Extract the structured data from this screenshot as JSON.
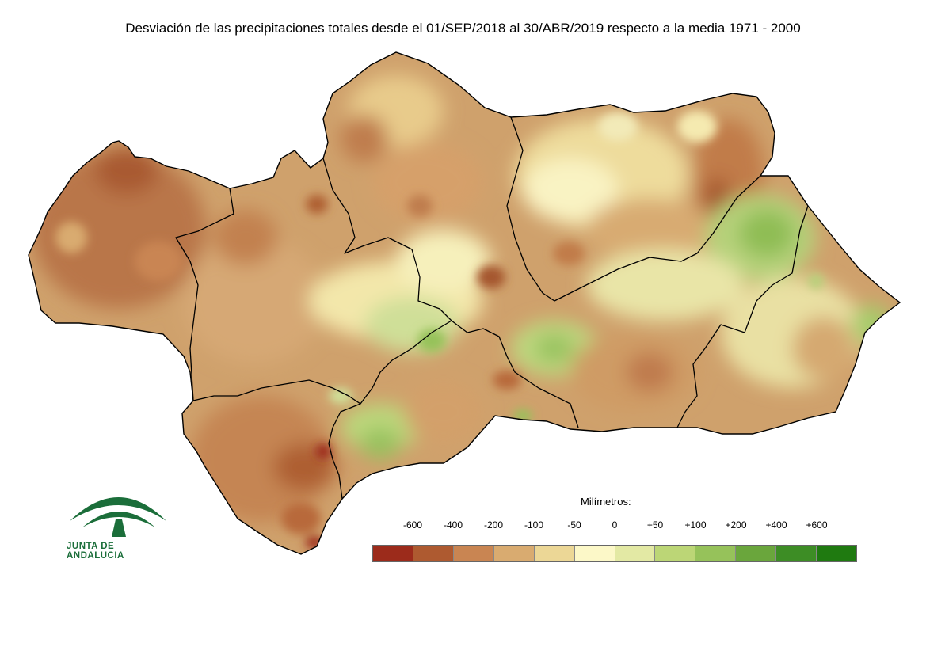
{
  "title": "Desviación de las precipitaciones totales desde el 01/SEP/2018 al 30/ABR/2019 respecto a la media 1971 - 2000",
  "legend": {
    "unit_label": "Milímetros:",
    "labels": [
      "-600",
      "-400",
      "-200",
      "-100",
      "-50",
      "0",
      "+50",
      "+100",
      "+200",
      "+400",
      "+600"
    ],
    "colors": [
      "#9c2b1b",
      "#ae5a30",
      "#c98552",
      "#d9ab70",
      "#ecd796",
      "#fcf8c8",
      "#e3e9a4",
      "#bcd676",
      "#96c25a",
      "#6aa63c",
      "#3d8d25",
      "#1f7a10"
    ]
  },
  "logo": {
    "text": "JUNTA DE ANDALUCIA",
    "icon": "junta-de-andalucia-logo-icon",
    "color": "#1b6e3a"
  },
  "map": {
    "region": "Andalucía",
    "background_color": "#cfa16c",
    "border_color": "#000000"
  }
}
